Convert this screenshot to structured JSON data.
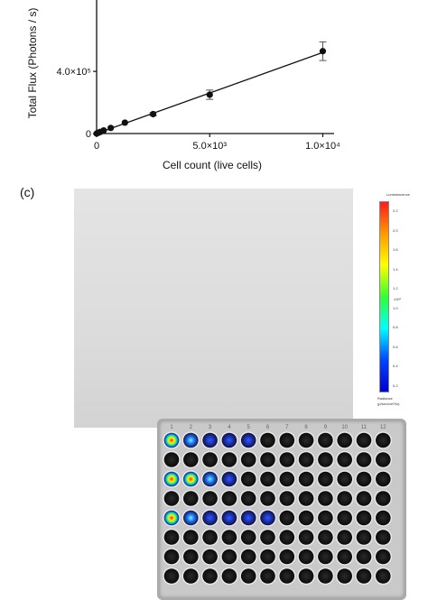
{
  "panel_c_label": "(c)",
  "chart_data": {
    "type": "scatter",
    "title": "",
    "xlabel": "Cell count (live cells)",
    "ylabel": "Total Flux (Photons / s)",
    "xlim": [
      0,
      10500
    ],
    "ylim": [
      0,
      1150000
    ],
    "x_ticks": [
      {
        "value": 0,
        "label": "0"
      },
      {
        "value": 5000,
        "label": "5.0×10³"
      },
      {
        "value": 10000,
        "label": "1.0×10⁴"
      }
    ],
    "y_ticks": [
      {
        "value": 0,
        "label": "0"
      },
      {
        "value": 400000,
        "label": "4.0×10⁵"
      }
    ],
    "points": [
      {
        "x": 0,
        "y": 0,
        "err": 0
      },
      {
        "x": 78,
        "y": 5000,
        "err": 0
      },
      {
        "x": 156,
        "y": 10000,
        "err": 0
      },
      {
        "x": 312,
        "y": 20000,
        "err": 0
      },
      {
        "x": 625,
        "y": 36000,
        "err": 0
      },
      {
        "x": 1250,
        "y": 70000,
        "err": 0
      },
      {
        "x": 2500,
        "y": 125000,
        "err": 10000
      },
      {
        "x": 5000,
        "y": 250000,
        "err": 30000
      },
      {
        "x": 10000,
        "y": 530000,
        "err": 60000
      }
    ],
    "fit_line": {
      "x": [
        0,
        10000
      ],
      "y": [
        0,
        522000
      ]
    },
    "grid": false
  },
  "plate": {
    "rows": 8,
    "cols": 12,
    "column_labels": [
      "1",
      "2",
      "3",
      "4",
      "5",
      "6",
      "7",
      "8",
      "9",
      "10",
      "11",
      "12"
    ]
  },
  "colorbar": {
    "title": "Luminescence",
    "ticks": [
      "2.2",
      "2.0",
      "1.6",
      "1.4",
      "1.2",
      "1.0",
      "0.8",
      "0.6",
      "0.4",
      "0.2"
    ],
    "exponent": "x10⁶",
    "unit_label": "Radiance",
    "unit": "(p/sec/cm²/sr)",
    "colors": [
      "#ff1a1a",
      "#ff9a00",
      "#ffff00",
      "#33ff33",
      "#00ffff",
      "#0044ff",
      "#0000cc"
    ]
  }
}
